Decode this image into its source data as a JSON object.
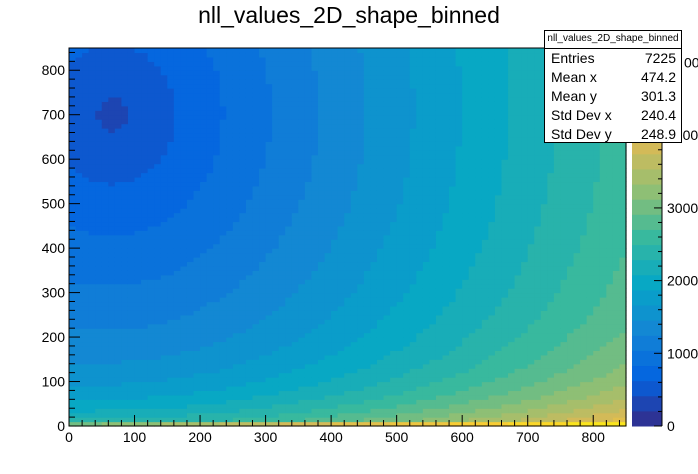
{
  "title": "nll_values_2D_shape_binned",
  "stats_box": {
    "title": "nll_values_2D_shape_binned",
    "rows": [
      {
        "label": "Entries",
        "value": "7225"
      },
      {
        "label": "Mean x",
        "value": "474.2"
      },
      {
        "label": "Mean y",
        "value": "301.3"
      },
      {
        "label": "Std Dev x",
        "value": "240.4"
      },
      {
        "label": "Std Dev y",
        "value": "248.9"
      }
    ]
  },
  "chart_data": {
    "type": "heatmap",
    "title": "nll_values_2D_shape_binned",
    "xlabel": "",
    "ylabel": "",
    "xlim": [
      0,
      850
    ],
    "ylim": [
      0,
      850
    ],
    "x_ticks": [
      0,
      100,
      200,
      300,
      400,
      500,
      600,
      700,
      800
    ],
    "y_ticks": [
      0,
      100,
      200,
      300,
      400,
      500,
      600,
      700,
      800
    ],
    "z_range": [
      0,
      5200
    ],
    "colorbar_ticks": [
      0,
      1000,
      2000,
      3000,
      4000
    ],
    "colorbar_tick_labels": [
      "0",
      "1000",
      "2000",
      "3000",
      "4000"
    ],
    "colorbar_top_label": "00",
    "palette": [
      "#352a87",
      "#0363e1",
      "#1485d4",
      "#06a7c6",
      "#38b99e",
      "#92bf73",
      "#d9ba56",
      "#fcce2e",
      "#f9fb0e"
    ],
    "description_of_surface": {
      "minimum_region": {
        "x": [
          0,
          270
        ],
        "y": [
          420,
          850
        ],
        "z": 350
      },
      "zero_row": {
        "y": [
          0,
          10
        ],
        "z_range": [
          3000,
          5200
        ]
      }
    },
    "bins": {
      "nx": 85,
      "ny": 85,
      "bin_width": 10
    }
  }
}
